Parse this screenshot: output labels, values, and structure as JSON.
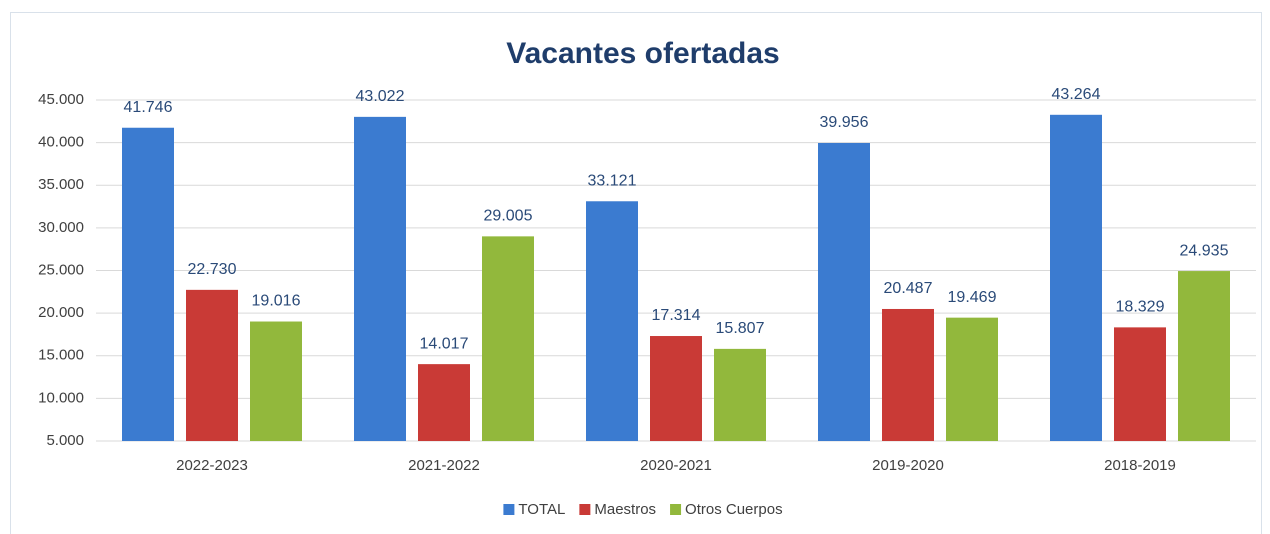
{
  "chart_data": {
    "type": "bar",
    "title": "Vacantes ofertadas",
    "categories": [
      "2022-2023",
      "2021-2022",
      "2020-2021",
      "2019-2020",
      "2018-2019"
    ],
    "series": [
      {
        "name": "TOTAL",
        "color": "#3b7bd0",
        "values": [
          41746,
          43022,
          33121,
          39956,
          43264
        ],
        "value_labels": [
          "41.746",
          "43.022",
          "33.121",
          "39.956",
          "43.264"
        ]
      },
      {
        "name": "Maestros",
        "color": "#c93a36",
        "values": [
          22730,
          14017,
          17314,
          20487,
          18329
        ],
        "value_labels": [
          "22.730",
          "14.017",
          "17.314",
          "20.487",
          "18.329"
        ]
      },
      {
        "name": "Otros Cuerpos",
        "color": "#92b83c",
        "values": [
          19016,
          29005,
          15807,
          19469,
          24935
        ],
        "value_labels": [
          "19.016",
          "29.005",
          "15.807",
          "19.469",
          "24.935"
        ]
      }
    ],
    "ylim": [
      5000,
      45000
    ],
    "yticks": [
      {
        "value": 5000,
        "label": "5.000"
      },
      {
        "value": 10000,
        "label": "10.000"
      },
      {
        "value": 15000,
        "label": "15.000"
      },
      {
        "value": 20000,
        "label": "20.000"
      },
      {
        "value": 25000,
        "label": "25.000"
      },
      {
        "value": 30000,
        "label": "30.000"
      },
      {
        "value": 35000,
        "label": "35.000"
      },
      {
        "value": 40000,
        "label": "40.000"
      },
      {
        "value": 45000,
        "label": "45.000"
      }
    ],
    "grid": true,
    "legend": "bottom"
  }
}
